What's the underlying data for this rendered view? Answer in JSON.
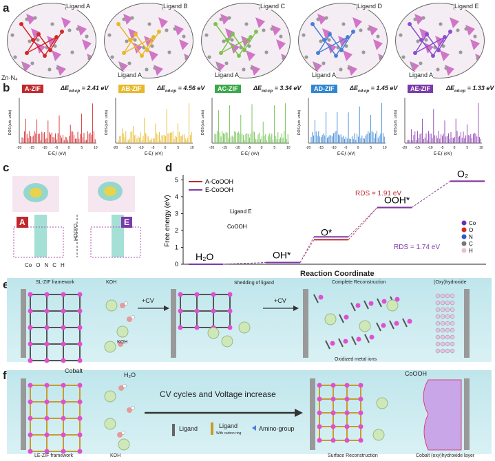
{
  "panel_a": {
    "label": "a",
    "zn_label": "Zn-N₄",
    "circles": [
      {
        "ligand_top": "Ligand A",
        "ligand_bottom": "",
        "color": "#d62728"
      },
      {
        "ligand_top": "Ligand B",
        "ligand_bottom": "Ligand A",
        "color": "#e8b82a"
      },
      {
        "ligand_top": "Ligand C",
        "ligand_bottom": "Ligand A",
        "color": "#7cc44a"
      },
      {
        "ligand_top": "Ligand D",
        "ligand_bottom": "Ligand A",
        "color": "#4a7fd6"
      },
      {
        "ligand_top": "Ligand E",
        "ligand_bottom": "Ligand A",
        "color": "#8a4fd0"
      }
    ]
  },
  "panel_b": {
    "label": "b",
    "de_symbol": "ΔE",
    "de_sub": "cd-cp",
    "ylabel": "DOS (arb. units)",
    "xlabel": "E-Eƒ (eV)",
    "ticks": [
      "-20",
      "-15",
      "-10",
      "-5",
      "0",
      "5",
      "10"
    ],
    "plots": [
      {
        "name": "A-ZIF",
        "de": "= 2.41 eV",
        "color": "#d62728",
        "tagcolor": "#c0282d"
      },
      {
        "name": "AB-ZIF",
        "de": "= 4.56 eV",
        "color": "#e8b82a",
        "tagcolor": "#e8b82a"
      },
      {
        "name": "AC-ZIF",
        "de": "= 3.34 eV",
        "color": "#6cc04a",
        "tagcolor": "#3aa84a"
      },
      {
        "name": "AD-ZIF",
        "de": "= 1.45 eV",
        "color": "#3a86d6",
        "tagcolor": "#2f86d0"
      },
      {
        "name": "AE-ZIF",
        "de": "= 1.33 eV",
        "color": "#8a3fb0",
        "tagcolor": "#7a3aa8"
      }
    ]
  },
  "panel_c": {
    "label": "c",
    "tag_a": "A",
    "tag_e": "E",
    "height_label": "CoOOH",
    "legend": [
      "Co",
      "O",
      "N",
      "C",
      "H"
    ]
  },
  "panel_d": {
    "label": "d",
    "ylabel": "Free energy (eV)",
    "xlabel": "Reaction Coordinate",
    "legend": [
      "A-CoOOH",
      "E-CoOOH"
    ],
    "ligand_e": "Ligand E",
    "coooh": "CoOOH",
    "rds_a": "RDS = 1.91 eV",
    "rds_e": "RDS = 1.74 eV",
    "states": [
      "H₂O",
      "OH*",
      "O*",
      "OOH*",
      "O₂"
    ],
    "atom_legend": [
      "Co",
      "O",
      "N",
      "C",
      "H"
    ],
    "yticks": [
      "0",
      "1",
      "2",
      "3",
      "4",
      "5"
    ]
  },
  "chart_data": {
    "type": "line",
    "title": "",
    "xlabel": "Reaction Coordinate",
    "ylabel": "Free energy (eV)",
    "ylim": [
      0,
      5.3
    ],
    "categories": [
      "H₂O",
      "OH*",
      "O*",
      "OOH*",
      "O₂"
    ],
    "series": [
      {
        "name": "A-CoOOH",
        "values": [
          0,
          0.1,
          1.45,
          3.36,
          4.92
        ]
      },
      {
        "name": "E-CoOOH",
        "values": [
          0,
          0.1,
          1.62,
          3.36,
          4.92
        ]
      }
    ]
  },
  "panel_e": {
    "label": "e",
    "framework": "SL-ZIF framework",
    "koh": "KOH",
    "koh2": "KOH",
    "cv1": "+CV",
    "cv2": "+CV",
    "shedding": "Shedding of ligand",
    "complete": "Complete Reconstruction",
    "oxy": "(Oxy)hydroxide",
    "oxidized": "Oxidized metal ions"
  },
  "panel_f": {
    "label": "f",
    "cobalt": "Cobalt",
    "h2o": "H₂O",
    "coooh": "CoOOH",
    "arrow": "CV cycles and Voltage increase",
    "legend_ligand": "Ligand",
    "legend_ligand2": "Ligand",
    "legend_ligand2_sub": "With carbon ring",
    "legend_amino": "Amino-group",
    "framework": "LE-ZIF framework",
    "koh": "KOH",
    "surface": "Surface Reconstruction",
    "layer": "Cobalt (oxy)hydroxide layer"
  }
}
